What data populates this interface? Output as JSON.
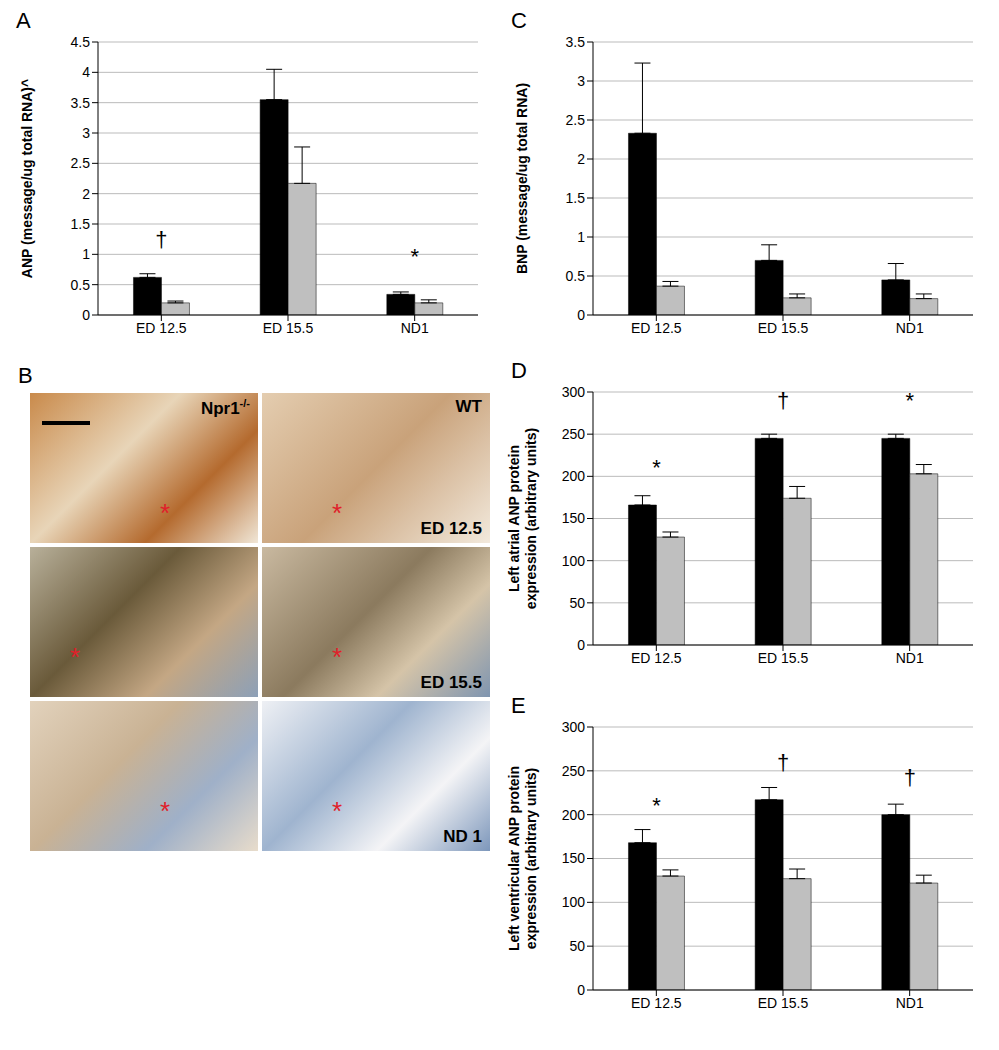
{
  "chart_data": [
    {
      "panel": "A",
      "type": "bar",
      "ylabel": "ANP (message/ug total RNA)^",
      "categories": [
        "ED 12.5",
        "ED 15.5",
        "ND1"
      ],
      "ylim": [
        0,
        4.5
      ],
      "yticks": [
        0,
        0.5,
        1,
        1.5,
        2,
        2.5,
        3,
        3.5,
        4,
        4.5
      ],
      "grid": true,
      "series": [
        {
          "color": "#000000",
          "values": [
            0.62,
            3.55,
            0.34
          ],
          "errors": [
            0.06,
            0.5,
            0.04
          ]
        },
        {
          "color": "#bfbfbf",
          "values": [
            0.2,
            2.17,
            0.2
          ],
          "errors": [
            0.03,
            0.6,
            0.05
          ]
        }
      ],
      "annotations": [
        {
          "category": "ED 12.5",
          "text": "†"
        },
        {
          "category": "ND1",
          "text": "*"
        }
      ]
    },
    {
      "panel": "C",
      "type": "bar",
      "ylabel": "BNP (message/ug total RNA)",
      "categories": [
        "ED 12.5",
        "ED 15.5",
        "ND1"
      ],
      "ylim": [
        0,
        3.5
      ],
      "yticks": [
        0,
        0.5,
        1,
        1.5,
        2,
        2.5,
        3,
        3.5
      ],
      "grid": true,
      "series": [
        {
          "color": "#000000",
          "values": [
            2.33,
            0.7,
            0.45
          ],
          "errors": [
            0.9,
            0.2,
            0.21
          ]
        },
        {
          "color": "#bfbfbf",
          "values": [
            0.37,
            0.22,
            0.21
          ],
          "errors": [
            0.06,
            0.05,
            0.06
          ]
        }
      ],
      "annotations": []
    },
    {
      "panel": "D",
      "type": "bar",
      "ylabel": "Left atrial ANP protein expression (arbitrary units)",
      "categories": [
        "ED 12.5",
        "ED 15.5",
        "ND1"
      ],
      "ylim": [
        0,
        300
      ],
      "yticks": [
        0,
        50,
        100,
        150,
        200,
        250,
        300
      ],
      "grid": true,
      "series": [
        {
          "color": "#000000",
          "values": [
            166,
            245,
            245
          ],
          "errors": [
            11,
            5,
            5
          ]
        },
        {
          "color": "#bfbfbf",
          "values": [
            128,
            174,
            203
          ],
          "errors": [
            6,
            14,
            11
          ]
        }
      ],
      "annotations": [
        {
          "category": "ED 12.5",
          "text": "*"
        },
        {
          "category": "ED 15.5",
          "text": "†"
        },
        {
          "category": "ND1",
          "text": "*"
        }
      ]
    },
    {
      "panel": "E",
      "type": "bar",
      "ylabel": "Left ventricular ANP protein expression (arbitrary units)",
      "categories": [
        "ED 12.5",
        "ED 15.5",
        "ND1"
      ],
      "ylim": [
        0,
        300
      ],
      "yticks": [
        0,
        50,
        100,
        150,
        200,
        250,
        300
      ],
      "grid": true,
      "series": [
        {
          "color": "#000000",
          "values": [
            168,
            217,
            200
          ],
          "errors": [
            15,
            14,
            12
          ]
        },
        {
          "color": "#bfbfbf",
          "values": [
            130,
            127,
            122
          ],
          "errors": [
            7,
            11,
            9
          ]
        }
      ],
      "annotations": [
        {
          "category": "ED 12.5",
          "text": "*"
        },
        {
          "category": "ED 15.5",
          "text": "†"
        },
        {
          "category": "ND1",
          "text": "†"
        }
      ]
    }
  ],
  "image_panel": {
    "panel": "B",
    "columns": [
      {
        "text": "Npr1",
        "superscript": "-/-"
      },
      {
        "text": "WT",
        "superscript": ""
      }
    ],
    "rows": [
      "ED 12.5",
      "ED 15.5",
      "ND 1"
    ],
    "marker_text": "*"
  }
}
